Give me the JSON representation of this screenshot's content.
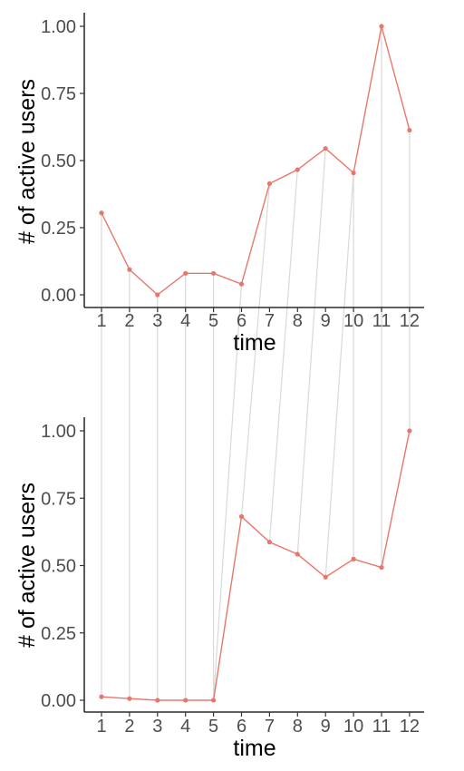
{
  "chart_data": [
    {
      "type": "line",
      "xlabel": "time",
      "ylabel": "# of active users",
      "x": [
        1,
        2,
        3,
        4,
        5,
        6,
        7,
        8,
        9,
        10,
        11,
        12
      ],
      "series": [
        {
          "values": [
            0.305,
            0.094,
            0.0,
            0.08,
            0.08,
            0.04,
            0.414,
            0.466,
            0.545,
            0.454,
            1.0,
            0.613
          ]
        }
      ],
      "ylim": [
        0,
        1
      ],
      "yticks": [
        {
          "value": 0,
          "label": "0.00"
        },
        {
          "value": 0.25,
          "label": "0.25"
        },
        {
          "value": 0.5,
          "label": "0.50"
        },
        {
          "value": 0.75,
          "label": "0.75"
        },
        {
          "value": 1,
          "label": "1.00"
        }
      ],
      "xticks": [
        "1",
        "2",
        "3",
        "4",
        "5",
        "6",
        "7",
        "8",
        "9",
        "10",
        "11",
        "12"
      ],
      "grid": false,
      "line_color": "#E8776B"
    },
    {
      "type": "line",
      "xlabel": "time",
      "ylabel": "# of active users",
      "x": [
        1,
        2,
        3,
        4,
        5,
        6,
        7,
        8,
        9,
        10,
        11,
        12
      ],
      "series": [
        {
          "values": [
            0.013,
            0.006,
            0.0,
            0.0,
            0.0,
            0.682,
            0.587,
            0.542,
            0.457,
            0.524,
            0.493,
            1.0
          ]
        }
      ],
      "ylim": [
        0,
        1
      ],
      "yticks": [
        {
          "value": 0,
          "label": "0.00"
        },
        {
          "value": 0.25,
          "label": "0.25"
        },
        {
          "value": 0.5,
          "label": "0.50"
        },
        {
          "value": 0.75,
          "label": "0.75"
        },
        {
          "value": 1,
          "label": "1.00"
        }
      ],
      "xticks": [
        "1",
        "2",
        "3",
        "4",
        "5",
        "6",
        "7",
        "8",
        "9",
        "10",
        "11",
        "12"
      ],
      "grid": false,
      "line_color": "#E8776B"
    }
  ],
  "alignment": {
    "connector_color": "#D9D9D9",
    "pairs": [
      [
        1,
        1
      ],
      [
        2,
        2
      ],
      [
        3,
        3
      ],
      [
        4,
        4
      ],
      [
        5,
        5
      ],
      [
        6,
        5
      ],
      [
        7,
        6
      ],
      [
        8,
        7
      ],
      [
        9,
        8
      ],
      [
        10,
        9
      ],
      [
        10,
        10
      ],
      [
        11,
        11
      ],
      [
        12,
        12
      ]
    ]
  }
}
